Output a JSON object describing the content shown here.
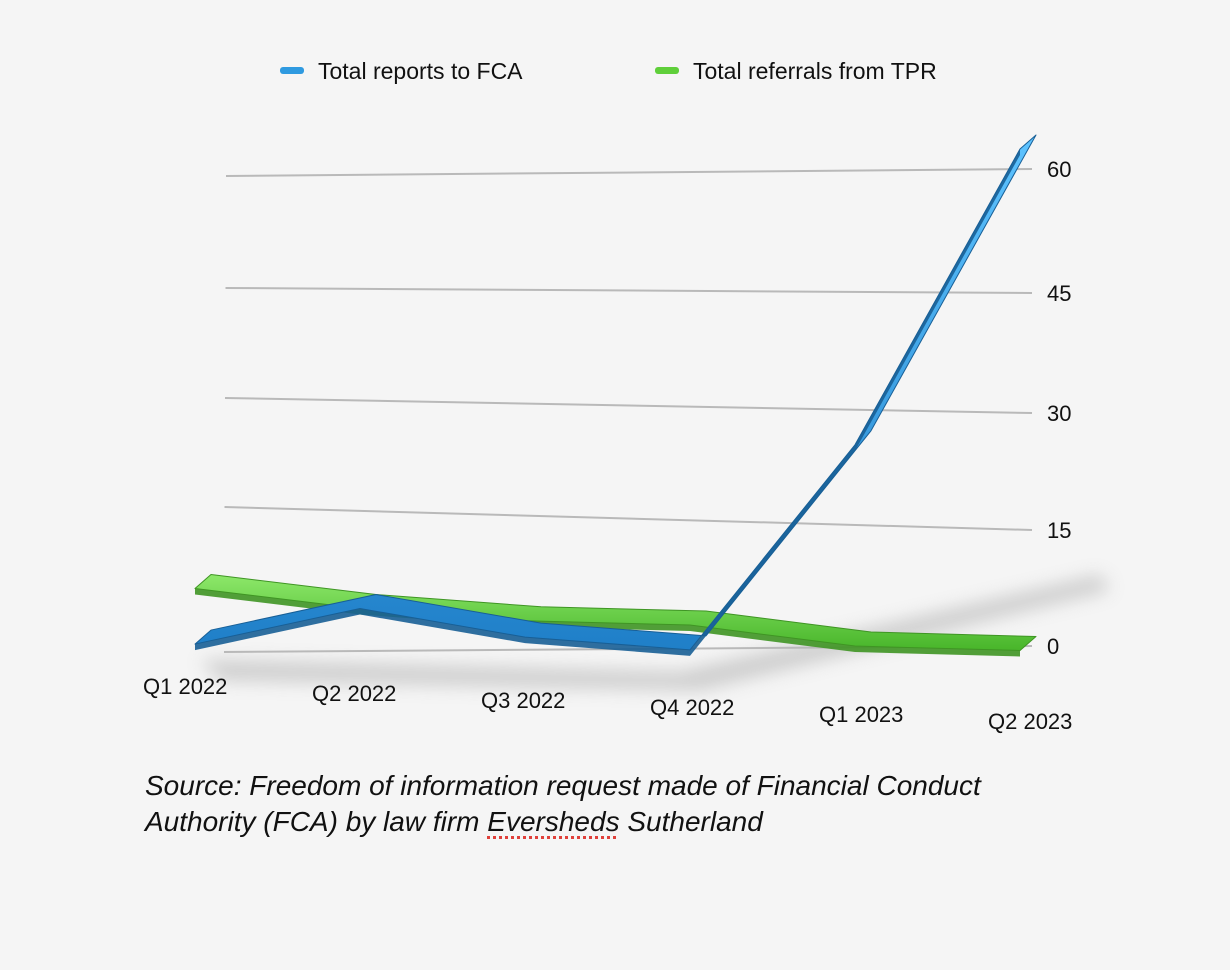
{
  "chart_data": {
    "type": "line",
    "style": "3d ribbon",
    "categories": [
      "Q1 2022",
      "Q2 2022",
      "Q3 2022",
      "Q4 2022",
      "Q1 2023",
      "Q2 2023"
    ],
    "series": [
      {
        "name": "Total reports to FCA",
        "color": "#2f9ae0",
        "values": [
          1,
          6,
          3,
          2,
          27,
          62
        ]
      },
      {
        "name": "Total referrals from TPR",
        "color": "#5fcf3a",
        "values": [
          8,
          6,
          5,
          5,
          3,
          3
        ]
      }
    ],
    "y_ticks": [
      0,
      15,
      30,
      45,
      60
    ],
    "ylim": [
      0,
      60
    ],
    "grid": true,
    "y_axis_position": "right",
    "legend_position": "top"
  },
  "source": {
    "prefix": "Source: Freedom of information request made of Financial Conduct Authority (FCA) by law firm ",
    "flagged_word": "Eversheds",
    "suffix": " Sutherland"
  }
}
